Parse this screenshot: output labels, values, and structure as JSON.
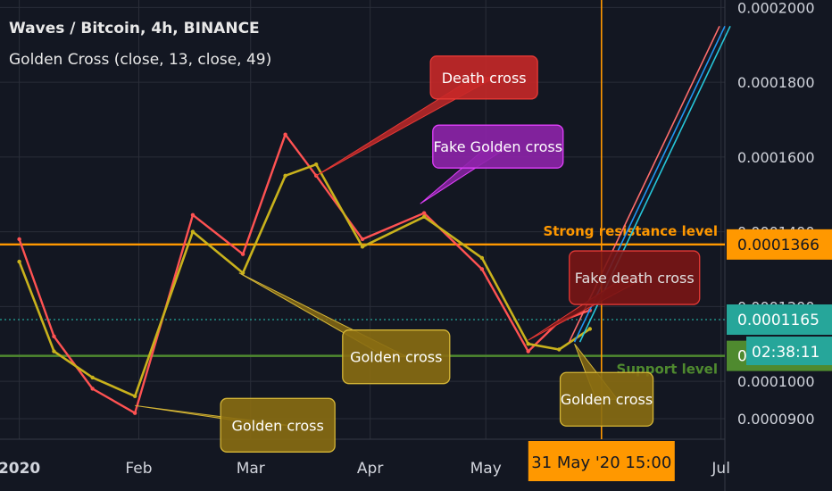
{
  "header": {
    "title": "Waves / Bitcoin, 4h, BINANCE",
    "indicator": "Golden Cross (close, 13, close, 49)"
  },
  "chart_data": {
    "type": "line",
    "series": [
      {
        "x": [
          "2020-01-01",
          "2020-01-10",
          "2020-01-20",
          "2020-01-31",
          "2020-02-15",
          "2020-02-28",
          "2020-03-10",
          "2020-03-18",
          "2020-03-30",
          "2020-04-15",
          "2020-04-30",
          "2020-05-12",
          "2020-05-20",
          "2020-05-28"
        ],
        "values": [
          0.000138,
          0.000112,
          9.8e-05,
          9.15e-05,
          0.0001445,
          0.000134,
          0.000166,
          0.000155,
          0.000138,
          0.000145,
          0.00013,
          0.000108,
          0.000116,
          0.000119
        ]
      },
      {
        "x": [
          "2020-01-01",
          "2020-01-10",
          "2020-01-20",
          "2020-01-31",
          "2020-02-15",
          "2020-02-28",
          "2020-03-10",
          "2020-03-18",
          "2020-03-30",
          "2020-04-15",
          "2020-04-30",
          "2020-05-12",
          "2020-05-20",
          "2020-05-28"
        ],
        "values": [
          0.000132,
          0.000108,
          0.000101,
          9.6e-05,
          0.00014,
          0.000129,
          0.000155,
          0.000158,
          0.000136,
          0.000144,
          0.000133,
          0.00011,
          0.0001085,
          0.000114
        ]
      }
    ],
    "y_ticks": [
      "0.0000900",
      "0.0001000",
      "0.0001200",
      "0.0001400",
      "0.0001600",
      "0.0001800",
      "0.0002000"
    ],
    "ylim": [
      8.45e-05,
      0.000202
    ],
    "x_ticks": [
      {
        "label": "2020",
        "date": "2020-01-01"
      },
      {
        "label": "Feb",
        "date": "2020-02-01"
      },
      {
        "label": "Mar",
        "date": "2020-03-01"
      },
      {
        "label": "Apr",
        "date": "2020-04-01"
      },
      {
        "label": "May",
        "date": "2020-05-01"
      },
      {
        "label": "Jul",
        "date": "2020-07-01"
      }
    ],
    "xlim": [
      "2019-12-27",
      "2020-07-02"
    ],
    "levels": [
      {
        "label": "Strong resistance level",
        "value": 0.0001366,
        "price": "0.0001366",
        "color": "#ff9800"
      },
      {
        "label": "Support level",
        "value": 0.0001068,
        "price": "0.0001068",
        "color": "#4f8a2f"
      },
      {
        "label": "",
        "value": 0.0001165,
        "price": "0.0001165",
        "color": "#26a69a"
      }
    ],
    "countdown": "02:38:11",
    "cursor": {
      "date": "2020-05-31",
      "label": "31 May '20   15:00"
    },
    "annotations": [
      {
        "text": "Death cross",
        "color": "#c62828",
        "border": "#e53935",
        "text_color": "#ffffff",
        "at": {
          "date": "2020-03-18",
          "value": 0.000155
        }
      },
      {
        "text": "Fake Golden cross",
        "color": "#8e24aa",
        "border": "#e040fb",
        "text_color": "#ffffff",
        "at": {
          "date": "2020-04-14",
          "value": 0.0001475
        }
      },
      {
        "text": "Fake death cross",
        "color": "#7a1515",
        "border": "#e53935",
        "text_color": "#e0e0e0",
        "at": {
          "date": "2020-05-12",
          "value": 0.000111
        }
      },
      {
        "text": "Golden cross",
        "color": "#8a6d12",
        "border": "#d4b536",
        "text_color": "#ffffff",
        "at": {
          "date": "2020-01-31",
          "value": 9.35e-05
        }
      },
      {
        "text": "Golden cross",
        "color": "#8a6d12",
        "border": "#d4b536",
        "text_color": "#ffffff",
        "at": {
          "date": "2020-02-27",
          "value": 0.000129
        }
      },
      {
        "text": "Golden cross",
        "color": "#8a6d12",
        "border": "#d4b536",
        "text_color": "#ffffff",
        "at": {
          "date": "2020-05-24",
          "value": 0.00011
        }
      }
    ],
    "channel": {
      "from": {
        "date": "2020-05-24",
        "value": 0.0001105
      },
      "to": {
        "date": "2020-07-02",
        "value": 0.000195
      }
    },
    "colors": {
      "price": "#ff5252",
      "slow": "#c9b21c",
      "grid": "#2a2e39",
      "text": "#d1d4dc",
      "background": "#131722",
      "cursor": "#ff9800"
    }
  }
}
